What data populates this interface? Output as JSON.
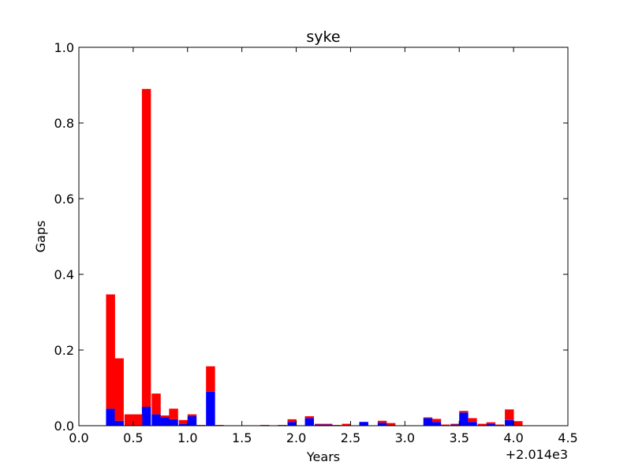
{
  "chart_data": {
    "type": "bar",
    "title": "syke",
    "xlabel": "Years",
    "ylabel": "Gaps",
    "x_offset_label": "+2.014e3",
    "xlim": [
      0.0,
      4.5
    ],
    "ylim": [
      0.0,
      1.0
    ],
    "xticks": [
      "0.0",
      "0.5",
      "1.0",
      "1.5",
      "2.0",
      "2.5",
      "3.0",
      "3.5",
      "4.0",
      "4.5"
    ],
    "yticks": [
      "0.0",
      "0.2",
      "0.4",
      "0.6",
      "0.8",
      "1.0"
    ],
    "bin_width": 0.083,
    "grid": false,
    "stacked": true,
    "colors": {
      "red_series": "#ff0000",
      "blue_series": "#0000ff",
      "axes": "#000000",
      "background": "#ffffff"
    },
    "series": [
      {
        "color": "#0000ff",
        "x": [
          0.25,
          0.33,
          0.42,
          0.5,
          0.58,
          0.67,
          0.75,
          0.83,
          0.92,
          1.0,
          1.08,
          1.17,
          1.25,
          1.92,
          2.08,
          2.17,
          2.25,
          2.58,
          2.75,
          2.83,
          3.17,
          3.25,
          3.42,
          3.5,
          3.58,
          3.75,
          3.92
        ],
        "values": [
          0.045,
          0.013,
          0.0,
          0.0,
          0.05,
          0.03,
          0.022,
          0.017,
          0.005,
          0.025,
          0.0,
          0.09,
          0.0,
          0.01,
          0.02,
          0.003,
          0.003,
          0.01,
          0.008,
          0.002,
          0.02,
          0.01,
          0.003,
          0.035,
          0.01,
          0.005,
          0.015
        ]
      },
      {
        "color": "#ff0000",
        "x": [
          0.25,
          0.33,
          0.42,
          0.5,
          0.58,
          0.67,
          0.75,
          0.83,
          0.92,
          1.0,
          1.08,
          1.17,
          1.25,
          1.67,
          1.83,
          1.92,
          2.08,
          2.17,
          2.25,
          2.33,
          2.42,
          2.58,
          2.75,
          2.83,
          3.17,
          3.25,
          3.33,
          3.42,
          3.5,
          3.58,
          3.67,
          3.75,
          3.83,
          3.92,
          4.0
        ],
        "values": [
          0.302,
          0.165,
          0.03,
          0.03,
          0.84,
          0.055,
          0.005,
          0.028,
          0.01,
          0.005,
          0.002,
          0.067,
          0.002,
          0.002,
          0.002,
          0.007,
          0.005,
          0.002,
          0.002,
          0.002,
          0.005,
          0.0,
          0.005,
          0.005,
          0.002,
          0.008,
          0.003,
          0.002,
          0.004,
          0.01,
          0.005,
          0.004,
          0.003,
          0.028,
          0.012
        ]
      }
    ]
  }
}
